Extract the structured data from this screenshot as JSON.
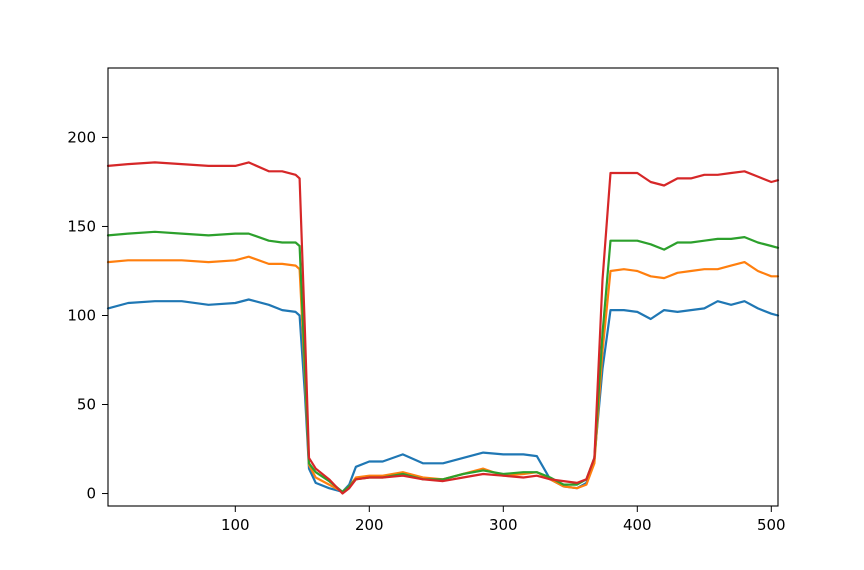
{
  "chart_data": {
    "type": "line",
    "title": "",
    "xlabel": "",
    "ylabel": "",
    "xlim": [
      5,
      505
    ],
    "ylim": [
      -7,
      239
    ],
    "grid": false,
    "x_ticks": [
      {
        "value": 100,
        "label": "100"
      },
      {
        "value": 200,
        "label": "200"
      },
      {
        "value": 300,
        "label": "300"
      },
      {
        "value": 400,
        "label": "400"
      },
      {
        "value": 500,
        "label": "500"
      }
    ],
    "y_ticks": [
      {
        "value": 0,
        "label": "0"
      },
      {
        "value": 50,
        "label": "50"
      },
      {
        "value": 100,
        "label": "100"
      },
      {
        "value": 150,
        "label": "150"
      },
      {
        "value": 200,
        "label": "200"
      }
    ],
    "series": [
      {
        "color": "#1f77b4",
        "points": [
          [
            5,
            104
          ],
          [
            20,
            107
          ],
          [
            40,
            108
          ],
          [
            60,
            108
          ],
          [
            80,
            106
          ],
          [
            100,
            107
          ],
          [
            110,
            109
          ],
          [
            125,
            106
          ],
          [
            135,
            103
          ],
          [
            145,
            102
          ],
          [
            148,
            100
          ],
          [
            152,
            55
          ],
          [
            155,
            14
          ],
          [
            160,
            6
          ],
          [
            170,
            3
          ],
          [
            180,
            1
          ],
          [
            185,
            5
          ],
          [
            190,
            15
          ],
          [
            200,
            18
          ],
          [
            210,
            18
          ],
          [
            225,
            22
          ],
          [
            240,
            17
          ],
          [
            255,
            17
          ],
          [
            270,
            20
          ],
          [
            285,
            23
          ],
          [
            300,
            22
          ],
          [
            315,
            22
          ],
          [
            325,
            21
          ],
          [
            335,
            8
          ],
          [
            345,
            4
          ],
          [
            355,
            3
          ],
          [
            362,
            6
          ],
          [
            368,
            20
          ],
          [
            374,
            70
          ],
          [
            380,
            103
          ],
          [
            390,
            103
          ],
          [
            400,
            102
          ],
          [
            410,
            98
          ],
          [
            420,
            103
          ],
          [
            430,
            102
          ],
          [
            440,
            103
          ],
          [
            450,
            104
          ],
          [
            460,
            108
          ],
          [
            470,
            106
          ],
          [
            480,
            108
          ],
          [
            490,
            104
          ],
          [
            500,
            101
          ],
          [
            505,
            100
          ]
        ]
      },
      {
        "color": "#ff7f0e",
        "points": [
          [
            5,
            130
          ],
          [
            20,
            131
          ],
          [
            40,
            131
          ],
          [
            60,
            131
          ],
          [
            80,
            130
          ],
          [
            100,
            131
          ],
          [
            110,
            133
          ],
          [
            125,
            129
          ],
          [
            135,
            129
          ],
          [
            145,
            128
          ],
          [
            148,
            126
          ],
          [
            152,
            65
          ],
          [
            155,
            16
          ],
          [
            160,
            9
          ],
          [
            170,
            5
          ],
          [
            180,
            1
          ],
          [
            185,
            4
          ],
          [
            190,
            9
          ],
          [
            200,
            10
          ],
          [
            210,
            10
          ],
          [
            225,
            12
          ],
          [
            240,
            9
          ],
          [
            255,
            8
          ],
          [
            270,
            11
          ],
          [
            285,
            14
          ],
          [
            300,
            10
          ],
          [
            315,
            11
          ],
          [
            325,
            12
          ],
          [
            335,
            8
          ],
          [
            345,
            4
          ],
          [
            355,
            3
          ],
          [
            362,
            5
          ],
          [
            368,
            17
          ],
          [
            374,
            80
          ],
          [
            380,
            125
          ],
          [
            390,
            126
          ],
          [
            400,
            125
          ],
          [
            410,
            122
          ],
          [
            420,
            121
          ],
          [
            430,
            124
          ],
          [
            440,
            125
          ],
          [
            450,
            126
          ],
          [
            460,
            126
          ],
          [
            470,
            128
          ],
          [
            480,
            130
          ],
          [
            490,
            125
          ],
          [
            500,
            122
          ],
          [
            505,
            122
          ]
        ]
      },
      {
        "color": "#2ca02c",
        "points": [
          [
            5,
            145
          ],
          [
            20,
            146
          ],
          [
            40,
            147
          ],
          [
            60,
            146
          ],
          [
            80,
            145
          ],
          [
            100,
            146
          ],
          [
            110,
            146
          ],
          [
            125,
            142
          ],
          [
            135,
            141
          ],
          [
            145,
            141
          ],
          [
            148,
            139
          ],
          [
            152,
            70
          ],
          [
            155,
            17
          ],
          [
            160,
            12
          ],
          [
            170,
            7
          ],
          [
            180,
            1
          ],
          [
            185,
            4
          ],
          [
            190,
            8
          ],
          [
            200,
            9
          ],
          [
            210,
            9
          ],
          [
            225,
            11
          ],
          [
            240,
            8
          ],
          [
            255,
            8
          ],
          [
            270,
            11
          ],
          [
            285,
            13
          ],
          [
            300,
            11
          ],
          [
            315,
            12
          ],
          [
            325,
            12
          ],
          [
            335,
            9
          ],
          [
            345,
            5
          ],
          [
            355,
            5
          ],
          [
            362,
            8
          ],
          [
            368,
            20
          ],
          [
            374,
            90
          ],
          [
            380,
            142
          ],
          [
            390,
            142
          ],
          [
            400,
            142
          ],
          [
            410,
            140
          ],
          [
            420,
            137
          ],
          [
            430,
            141
          ],
          [
            440,
            141
          ],
          [
            450,
            142
          ],
          [
            460,
            143
          ],
          [
            470,
            143
          ],
          [
            480,
            144
          ],
          [
            490,
            141
          ],
          [
            500,
            139
          ],
          [
            505,
            138
          ]
        ]
      },
      {
        "color": "#d62728",
        "points": [
          [
            5,
            184
          ],
          [
            20,
            185
          ],
          [
            40,
            186
          ],
          [
            60,
            185
          ],
          [
            80,
            184
          ],
          [
            100,
            184
          ],
          [
            110,
            186
          ],
          [
            125,
            181
          ],
          [
            135,
            181
          ],
          [
            145,
            179
          ],
          [
            148,
            177
          ],
          [
            152,
            90
          ],
          [
            155,
            20
          ],
          [
            160,
            14
          ],
          [
            170,
            8
          ],
          [
            180,
            0
          ],
          [
            185,
            3
          ],
          [
            190,
            8
          ],
          [
            200,
            9
          ],
          [
            210,
            9
          ],
          [
            225,
            10
          ],
          [
            240,
            8
          ],
          [
            255,
            7
          ],
          [
            270,
            9
          ],
          [
            285,
            11
          ],
          [
            300,
            10
          ],
          [
            315,
            9
          ],
          [
            325,
            10
          ],
          [
            335,
            8
          ],
          [
            345,
            7
          ],
          [
            355,
            6
          ],
          [
            362,
            8
          ],
          [
            368,
            20
          ],
          [
            374,
            120
          ],
          [
            380,
            180
          ],
          [
            390,
            180
          ],
          [
            400,
            180
          ],
          [
            410,
            175
          ],
          [
            420,
            173
          ],
          [
            430,
            177
          ],
          [
            440,
            177
          ],
          [
            450,
            179
          ],
          [
            460,
            179
          ],
          [
            470,
            180
          ],
          [
            480,
            181
          ],
          [
            490,
            178
          ],
          [
            500,
            175
          ],
          [
            505,
            176
          ]
        ]
      }
    ]
  }
}
